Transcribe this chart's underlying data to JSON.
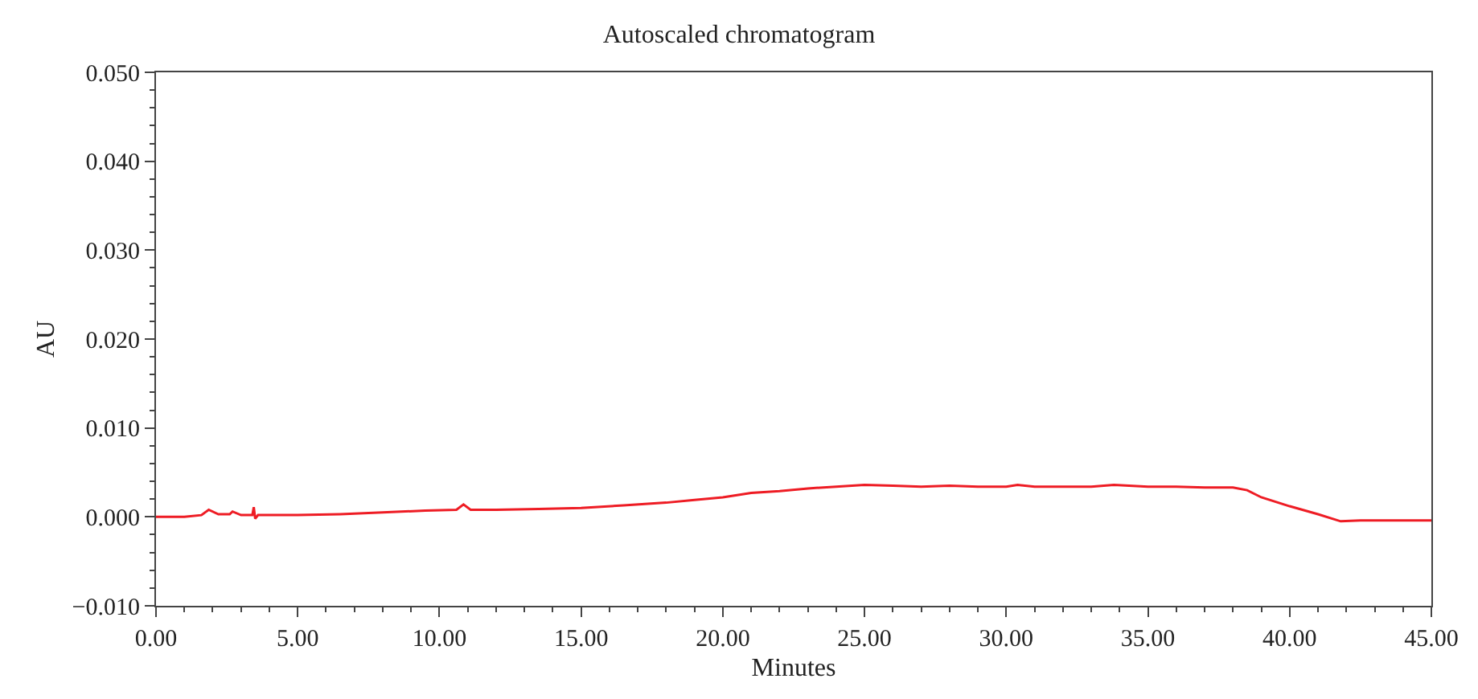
{
  "chart_data": {
    "type": "line",
    "title": "Autoscaled chromatogram",
    "xlabel": "Minutes",
    "ylabel": "AU",
    "xlim": [
      0,
      45
    ],
    "xticks": [
      {
        "value": 0,
        "label": "0.00"
      },
      {
        "value": 5,
        "label": "5.00"
      },
      {
        "value": 10,
        "label": "10.00"
      },
      {
        "value": 15,
        "label": "15.00"
      },
      {
        "value": 20,
        "label": "20.00"
      },
      {
        "value": 25,
        "label": "25.00"
      },
      {
        "value": 30,
        "label": "30.00"
      },
      {
        "value": 35,
        "label": "35.00"
      },
      {
        "value": 40,
        "label": "40.00"
      },
      {
        "value": 45,
        "label": "45.00"
      }
    ],
    "ylim": [
      -0.01,
      0.05
    ],
    "yticks": [
      {
        "value": -0.01,
        "label": "−0.010"
      },
      {
        "value": 0,
        "label": "0.000"
      },
      {
        "value": 0.01,
        "label": "0.010"
      },
      {
        "value": 0.02,
        "label": "0.020"
      },
      {
        "value": 0.03,
        "label": "0.030"
      },
      {
        "value": 0.04,
        "label": "0.040"
      },
      {
        "value": 0.05,
        "label": "0.050"
      }
    ],
    "marker": "none",
    "line_style": "solid",
    "series": [
      {
        "color": "#ee1c24",
        "x": [
          0,
          1.0,
          1.6,
          1.86,
          2.2,
          2.6,
          2.7,
          3.0,
          3.4,
          3.45,
          3.5,
          3.6,
          4.0,
          5.0,
          6.5,
          8.0,
          9.5,
          10.6,
          10.85,
          11.1,
          12.0,
          13.5,
          15.0,
          16.5,
          18.0,
          19.0,
          20.0,
          21.0,
          22.0,
          23.0,
          24.0,
          25.0,
          26.0,
          27.0,
          28.0,
          29.0,
          30.0,
          30.4,
          31.0,
          32.0,
          33.0,
          33.8,
          35.0,
          36.0,
          37.0,
          38.0,
          38.5,
          39.0,
          40.0,
          41.0,
          41.8,
          42.5,
          43.5,
          45.0
        ],
        "values": [
          0.0,
          0.0,
          0.0002,
          0.0008,
          0.0003,
          0.0003,
          0.0006,
          0.0002,
          0.0002,
          0.0011,
          -0.0002,
          0.0002,
          0.0002,
          0.0002,
          0.0003,
          0.0005,
          0.0007,
          0.0008,
          0.0014,
          0.0008,
          0.0008,
          0.0009,
          0.001,
          0.0013,
          0.0016,
          0.0019,
          0.0022,
          0.0027,
          0.0029,
          0.0032,
          0.0034,
          0.0036,
          0.0035,
          0.0034,
          0.0035,
          0.0034,
          0.0034,
          0.0036,
          0.0034,
          0.0034,
          0.0034,
          0.0036,
          0.0034,
          0.0034,
          0.0033,
          0.0033,
          0.003,
          0.0022,
          0.0012,
          0.0003,
          -0.0005,
          -0.0004,
          -0.0004,
          -0.0004
        ]
      }
    ]
  }
}
